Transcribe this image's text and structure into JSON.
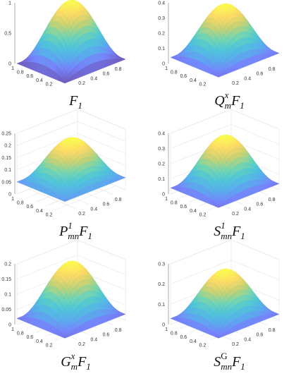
{
  "chart_data": [
    {
      "type": "surface3d",
      "caption": "F_1",
      "caption_parts": [
        {
          "t": "F"
        },
        {
          "t": "1",
          "sub": true
        }
      ],
      "zlim": [
        0,
        1
      ],
      "z_ticks": [
        "1",
        "0.5",
        "0"
      ],
      "x_ticks": [
        "1",
        "0.8",
        "0.6",
        "0.4",
        "0.2"
      ],
      "y_ticks": [
        "0.2",
        "0.4",
        "0.6",
        "0.8"
      ],
      "box": false,
      "surface_peak": 1.0,
      "edge_offset": 0.0
    },
    {
      "type": "surface3d",
      "caption": "Q_m^x F_1",
      "caption_parts": [
        {
          "t": "Q"
        },
        {
          "t": "x",
          "sup": true,
          "stack": "m"
        },
        {
          "t": "F"
        },
        {
          "t": "1",
          "sub": true
        }
      ],
      "zlim": [
        0,
        0.4
      ],
      "z_ticks": [
        "0.4",
        "0.3",
        "0.2",
        "0.1",
        "0"
      ],
      "x_ticks": [
        "1",
        "0.8",
        "0.6",
        "0.4",
        "0.2"
      ],
      "y_ticks": [
        "0.2",
        "0.4",
        "0.6",
        "0.8"
      ],
      "box": false,
      "surface_peak": 0.375,
      "edge_offset": 0.04
    },
    {
      "type": "surface3d",
      "caption": "P_mn^1 F_1",
      "caption_parts": [
        {
          "t": "P"
        },
        {
          "t": "1",
          "sup": true,
          "stack": "mn"
        },
        {
          "t": "F"
        },
        {
          "t": "1",
          "sub": true
        }
      ],
      "zlim": [
        0,
        0.25
      ],
      "z_ticks": [
        "0.25",
        "0.2",
        "0.15",
        "0.1",
        "0.05",
        "0"
      ],
      "x_ticks": [
        "1",
        "0.8",
        "0.6",
        "0.4",
        "0.2"
      ],
      "y_ticks": [
        "0.2",
        "0.4",
        "0.6",
        "0.8"
      ],
      "box": true,
      "surface_peak": 0.22,
      "edge_offset": 0.05
    },
    {
      "type": "surface3d",
      "caption": "S_mn^1 F_1",
      "caption_parts": [
        {
          "t": "S"
        },
        {
          "t": "1",
          "sup": true,
          "stack": "mn"
        },
        {
          "t": "F"
        },
        {
          "t": "1",
          "sub": true
        }
      ],
      "zlim": [
        0,
        0.4
      ],
      "z_ticks": [
        "0.4",
        "0.3",
        "0.2",
        "0.1",
        "0"
      ],
      "x_ticks": [
        "1",
        "0.8",
        "0.6",
        "0.4",
        "0.2"
      ],
      "y_ticks": [
        "0.2",
        "0.4",
        "0.6",
        "0.8"
      ],
      "box": true,
      "surface_peak": 0.37,
      "edge_offset": 0.04
    },
    {
      "type": "surface3d",
      "caption": "G_m^x F_1",
      "caption_parts": [
        {
          "t": "G"
        },
        {
          "t": "x",
          "sup": true,
          "stack": "m"
        },
        {
          "t": "F"
        },
        {
          "t": "1",
          "sub": true
        }
      ],
      "zlim": [
        0,
        0.2
      ],
      "z_ticks": [
        "0.2",
        "0.15",
        "0.1",
        "0.05",
        "0"
      ],
      "x_ticks": [
        "1",
        "0.8",
        "0.6",
        "0.4",
        "0.2"
      ],
      "y_ticks": [
        "0.2",
        "0.4",
        "0.6",
        "0.8"
      ],
      "box": true,
      "surface_peak": 0.2,
      "edge_offset": 0.02
    },
    {
      "type": "surface3d",
      "caption": "S_mn^G F_1",
      "caption_parts": [
        {
          "t": "S"
        },
        {
          "t": "G",
          "sup": true,
          "stack": "mn",
          "upright": true
        },
        {
          "t": "F"
        },
        {
          "t": "1",
          "sub": true
        }
      ],
      "zlim": [
        0,
        0.3
      ],
      "z_ticks": [
        "0.3",
        "0.2",
        "0.1",
        "0"
      ],
      "x_ticks": [
        "1",
        "0.8",
        "0.6",
        "0.4",
        "0.2"
      ],
      "y_ticks": [
        "0.2",
        "0.4",
        "0.6",
        "0.8"
      ],
      "box": true,
      "surface_peak": 0.26,
      "edge_offset": 0.03
    }
  ]
}
